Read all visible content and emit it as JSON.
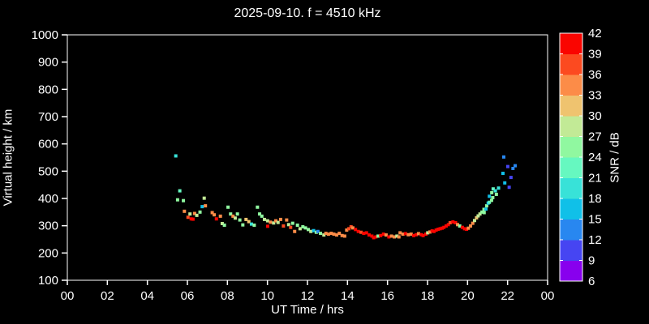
{
  "title": "2025-09-10. f = 4510 kHz",
  "chart_data": {
    "type": "scatter",
    "title": "2025-09-10. f = 4510 kHz",
    "xlabel": "UT Time / hrs",
    "ylabel": "Virtual height / km",
    "xlim": [
      0,
      24
    ],
    "ylim": [
      100,
      1000
    ],
    "grid": false,
    "background": "#000000",
    "axis_color": "#ffffff",
    "x_ticks": [
      {
        "t": 0,
        "label": "00"
      },
      {
        "t": 2,
        "label": "02"
      },
      {
        "t": 4,
        "label": "04"
      },
      {
        "t": 6,
        "label": "06"
      },
      {
        "t": 8,
        "label": "08"
      },
      {
        "t": 10,
        "label": "10"
      },
      {
        "t": 12,
        "label": "12"
      },
      {
        "t": 14,
        "label": "14"
      },
      {
        "t": 16,
        "label": "16"
      },
      {
        "t": 18,
        "label": "18"
      },
      {
        "t": 20,
        "label": "20"
      },
      {
        "t": 22,
        "label": "22"
      },
      {
        "t": 24,
        "label": "00"
      }
    ],
    "y_ticks": [
      100,
      200,
      300,
      400,
      500,
      600,
      700,
      800,
      900,
      1000
    ],
    "colorbar": {
      "label": "SNR / dB",
      "min": 6,
      "max": 42,
      "step": 3,
      "tick_labels_top_to_bottom": [
        42,
        39,
        36,
        33,
        30,
        27,
        24,
        21,
        18,
        15,
        12,
        9,
        6
      ],
      "colors_low_to_high": [
        "#8800ee",
        "#4645f2",
        "#2887f0",
        "#10c0e8",
        "#38e2d8",
        "#66f8c0",
        "#90f8a0",
        "#c2ea96",
        "#efc36f",
        "#fc8c48",
        "#fc4a20",
        "#fa0500"
      ]
    },
    "point_units": [
      "ut_hours",
      "virtual_height_km",
      "snr_db"
    ],
    "points": [
      [
        5.42,
        556,
        19
      ],
      [
        5.51,
        395,
        25
      ],
      [
        5.62,
        428,
        22
      ],
      [
        5.8,
        392,
        25
      ],
      [
        5.85,
        353,
        34
      ],
      [
        6.03,
        331,
        37
      ],
      [
        6.13,
        343,
        28
      ],
      [
        6.19,
        325,
        40
      ],
      [
        6.28,
        324,
        40
      ],
      [
        6.36,
        345,
        34
      ],
      [
        6.47,
        338,
        28
      ],
      [
        6.63,
        350,
        25
      ],
      [
        6.74,
        370,
        16
      ],
      [
        6.84,
        401,
        28
      ],
      [
        6.9,
        373,
        34
      ],
      [
        7.24,
        348,
        34
      ],
      [
        7.34,
        340,
        34
      ],
      [
        7.45,
        325,
        40
      ],
      [
        7.65,
        335,
        34
      ],
      [
        7.74,
        308,
        28
      ],
      [
        7.85,
        302,
        25
      ],
      [
        8.03,
        368,
        25
      ],
      [
        8.16,
        343,
        25
      ],
      [
        8.28,
        335,
        34
      ],
      [
        8.39,
        328,
        28
      ],
      [
        8.5,
        343,
        25
      ],
      [
        8.62,
        321,
        25
      ],
      [
        8.77,
        303,
        25
      ],
      [
        8.93,
        323,
        31
      ],
      [
        9.07,
        315,
        31
      ],
      [
        9.2,
        306,
        19
      ],
      [
        9.34,
        302,
        25
      ],
      [
        9.5,
        368,
        25
      ],
      [
        9.61,
        343,
        25
      ],
      [
        9.72,
        335,
        25
      ],
      [
        9.85,
        323,
        28
      ],
      [
        10.01,
        318,
        28
      ],
      [
        10.01,
        298,
        40
      ],
      [
        10.15,
        313,
        34
      ],
      [
        10.31,
        310,
        28
      ],
      [
        10.42,
        318,
        34
      ],
      [
        10.53,
        312,
        28
      ],
      [
        10.66,
        323,
        34
      ],
      [
        10.8,
        299,
        37
      ],
      [
        10.96,
        321,
        34
      ],
      [
        11.06,
        304,
        28
      ],
      [
        11.16,
        294,
        37
      ],
      [
        11.26,
        309,
        25
      ],
      [
        11.36,
        279,
        34
      ],
      [
        11.5,
        302,
        25
      ],
      [
        11.63,
        289,
        28
      ],
      [
        11.77,
        296,
        25
      ],
      [
        11.9,
        292,
        25
      ],
      [
        12.04,
        286,
        25
      ],
      [
        12.17,
        279,
        28
      ],
      [
        12.31,
        282,
        16
      ],
      [
        12.44,
        276,
        25
      ],
      [
        12.52,
        279,
        13
      ],
      [
        12.65,
        272,
        25
      ],
      [
        12.82,
        266,
        28
      ],
      [
        12.92,
        272,
        34
      ],
      [
        13.05,
        269,
        34
      ],
      [
        13.19,
        272,
        34
      ],
      [
        13.32,
        269,
        34
      ],
      [
        13.46,
        266,
        34
      ],
      [
        13.59,
        272,
        34
      ],
      [
        13.73,
        264,
        34
      ],
      [
        13.86,
        262,
        34
      ],
      [
        13.96,
        284,
        34
      ],
      [
        14.07,
        289,
        37
      ],
      [
        14.18,
        296,
        37
      ],
      [
        14.27,
        292,
        34
      ],
      [
        14.4,
        286,
        40
      ],
      [
        14.54,
        279,
        40
      ],
      [
        14.68,
        276,
        37
      ],
      [
        14.81,
        272,
        40
      ],
      [
        14.95,
        274,
        40
      ],
      [
        15.08,
        266,
        40
      ],
      [
        15.22,
        262,
        40
      ],
      [
        15.31,
        256,
        40
      ],
      [
        15.42,
        259,
        40
      ],
      [
        15.53,
        262,
        25
      ],
      [
        15.66,
        264,
        40
      ],
      [
        15.8,
        269,
        40
      ],
      [
        15.93,
        266,
        34
      ],
      [
        16.07,
        259,
        40
      ],
      [
        16.2,
        262,
        34
      ],
      [
        16.34,
        259,
        34
      ],
      [
        16.47,
        262,
        28
      ],
      [
        16.57,
        259,
        34
      ],
      [
        16.63,
        274,
        34
      ],
      [
        16.77,
        269,
        34
      ],
      [
        16.9,
        271,
        40
      ],
      [
        17.04,
        267,
        34
      ],
      [
        17.18,
        269,
        34
      ],
      [
        17.31,
        264,
        40
      ],
      [
        17.44,
        267,
        40
      ],
      [
        17.55,
        271,
        34
      ],
      [
        17.69,
        267,
        40
      ],
      [
        17.78,
        264,
        40
      ],
      [
        17.92,
        269,
        40
      ],
      [
        18.01,
        274,
        28
      ],
      [
        18.12,
        277,
        34
      ],
      [
        18.23,
        281,
        40
      ],
      [
        18.32,
        279,
        40
      ],
      [
        18.43,
        284,
        40
      ],
      [
        18.53,
        287,
        40
      ],
      [
        18.63,
        289,
        40
      ],
      [
        18.73,
        291,
        40
      ],
      [
        18.82,
        294,
        40
      ],
      [
        18.93,
        299,
        40
      ],
      [
        19.04,
        304,
        40
      ],
      [
        19.13,
        311,
        37
      ],
      [
        19.27,
        314,
        40
      ],
      [
        19.4,
        311,
        40
      ],
      [
        19.5,
        304,
        34
      ],
      [
        19.61,
        299,
        25
      ],
      [
        19.74,
        294,
        40
      ],
      [
        19.85,
        289,
        40
      ],
      [
        19.95,
        287,
        40
      ],
      [
        20.04,
        291,
        34
      ],
      [
        20.15,
        299,
        34
      ],
      [
        20.26,
        309,
        34
      ],
      [
        20.35,
        319,
        28
      ],
      [
        20.45,
        329,
        31
      ],
      [
        20.53,
        336,
        28
      ],
      [
        20.62,
        343,
        28
      ],
      [
        20.72,
        350,
        25
      ],
      [
        20.82,
        360,
        25
      ],
      [
        20.83,
        348,
        25
      ],
      [
        20.92,
        361,
        16
      ],
      [
        20.96,
        373,
        25
      ],
      [
        21.03,
        383,
        16
      ],
      [
        21.09,
        386,
        22
      ],
      [
        21.09,
        408,
        16
      ],
      [
        21.2,
        393,
        25
      ],
      [
        21.21,
        421,
        25
      ],
      [
        21.26,
        403,
        25
      ],
      [
        21.28,
        435,
        22
      ],
      [
        21.39,
        428,
        19
      ],
      [
        21.44,
        415,
        25
      ],
      [
        21.55,
        438,
        19
      ],
      [
        21.77,
        492,
        16
      ],
      [
        21.81,
        552,
        13
      ],
      [
        21.86,
        457,
        16
      ],
      [
        22.01,
        517,
        10
      ],
      [
        22.08,
        441,
        10
      ],
      [
        22.17,
        477,
        10
      ],
      [
        22.27,
        510,
        13
      ],
      [
        22.38,
        520,
        13
      ]
    ]
  }
}
